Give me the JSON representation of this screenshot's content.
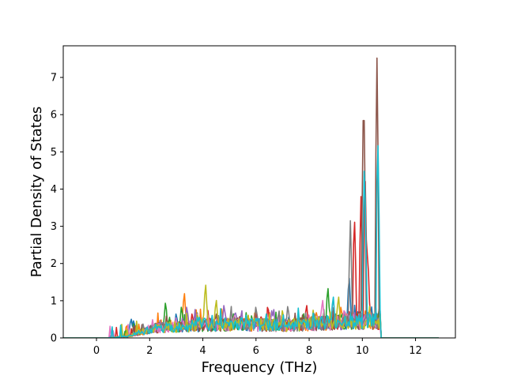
{
  "chart_data": {
    "type": "line",
    "title": "",
    "xlabel": "Frequency (THz)",
    "ylabel": "Partial Density of States",
    "xlim": [
      -1.25,
      13.5
    ],
    "ylim": [
      0,
      7.85
    ],
    "xticks": [
      0,
      2,
      4,
      6,
      8,
      10,
      12
    ],
    "yticks": [
      0,
      1,
      2,
      3,
      4,
      5,
      6,
      7
    ],
    "grid": false,
    "legend": "none",
    "x_range_of_data": [
      -1.25,
      12.9
    ],
    "series": [
      {
        "color": "#1f77b4",
        "seed": 1,
        "points": [
          [
            1.3,
            0.55
          ],
          [
            1.4,
            0.5
          ],
          [
            2.3,
            0.45
          ],
          [
            3.0,
            0.7
          ],
          [
            9.5,
            1.75
          ],
          [
            10.0,
            0.5
          ],
          [
            10.3,
            0.2
          ]
        ]
      },
      {
        "color": "#ff7f0e",
        "seed": 2,
        "points": [
          [
            3.3,
            1.3
          ],
          [
            4.7,
            0.85
          ],
          [
            6.0,
            0.75
          ],
          [
            9.2,
            0.9
          ],
          [
            9.6,
            0.6
          ]
        ]
      },
      {
        "color": "#2ca02c",
        "seed": 3,
        "points": [
          [
            2.6,
            1.02
          ],
          [
            3.2,
            0.9
          ],
          [
            8.7,
            1.45
          ],
          [
            9.0,
            0.7
          ]
        ]
      },
      {
        "color": "#d62728",
        "seed": 4,
        "points": [
          [
            3.6,
            0.7
          ],
          [
            7.9,
            0.95
          ],
          [
            9.7,
            3.4
          ],
          [
            9.95,
            3.8
          ],
          [
            10.1,
            4.6
          ],
          [
            10.2,
            2.4
          ]
        ]
      },
      {
        "color": "#9467bd",
        "seed": 5,
        "points": [
          [
            3.4,
            0.9
          ],
          [
            4.8,
            0.95
          ],
          [
            6.6,
            0.8
          ],
          [
            8.2,
            0.7
          ]
        ]
      },
      {
        "color": "#8c564b",
        "seed": 6,
        "points": [
          [
            4.5,
            0.7
          ],
          [
            6.4,
            0.6
          ],
          [
            10.05,
            7.05
          ],
          [
            10.55,
            7.52
          ]
        ]
      },
      {
        "color": "#e377c2",
        "seed": 7,
        "points": [
          [
            5.2,
            0.65
          ],
          [
            8.5,
            1.1
          ],
          [
            8.9,
            1.15
          ],
          [
            9.3,
            0.8
          ]
        ]
      },
      {
        "color": "#7f7f7f",
        "seed": 8,
        "points": [
          [
            6.0,
            0.9
          ],
          [
            7.2,
            0.92
          ],
          [
            9.55,
            3.15
          ],
          [
            9.85,
            0.6
          ]
        ]
      },
      {
        "color": "#bcbd22",
        "seed": 9,
        "points": [
          [
            4.1,
            1.55
          ],
          [
            4.5,
            1.1
          ],
          [
            7.0,
            0.8
          ],
          [
            9.1,
            1.2
          ]
        ]
      },
      {
        "color": "#17becf",
        "seed": 10,
        "points": [
          [
            3.8,
            0.6
          ],
          [
            8.9,
            1.2
          ],
          [
            10.08,
            4.9
          ],
          [
            10.58,
            5.65
          ]
        ]
      }
    ]
  }
}
